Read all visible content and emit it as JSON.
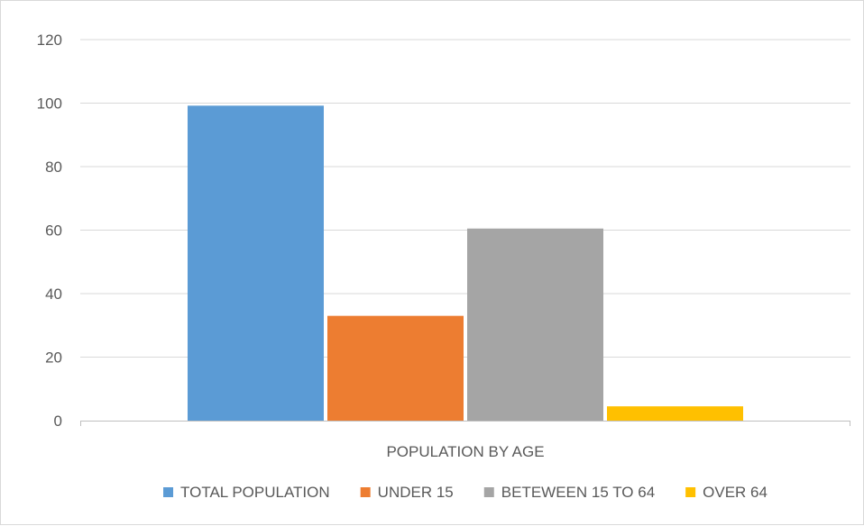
{
  "chart_data": {
    "type": "bar",
    "categories": [
      "POPULATION BY AGE"
    ],
    "series": [
      {
        "name": "TOTAL POPULATION",
        "values": [
          99.2
        ],
        "color": "#5B9BD5"
      },
      {
        "name": "UNDER 15",
        "values": [
          33
        ],
        "color": "#ED7D31"
      },
      {
        "name": "BETEWEEN 15 TO 64",
        "values": [
          60.5
        ],
        "color": "#A5A5A5"
      },
      {
        "name": "OVER 64",
        "values": [
          4.5
        ],
        "color": "#FFC000"
      }
    ],
    "title": "",
    "xlabel": "",
    "ylabel": "",
    "ylim": [
      0,
      120
    ],
    "yticks": [
      0,
      20,
      40,
      60,
      80,
      100,
      120
    ],
    "grid": true,
    "legend_position": "bottom",
    "gridline_color": "#d9d9d9",
    "axis_color": "#bfbfbf"
  }
}
